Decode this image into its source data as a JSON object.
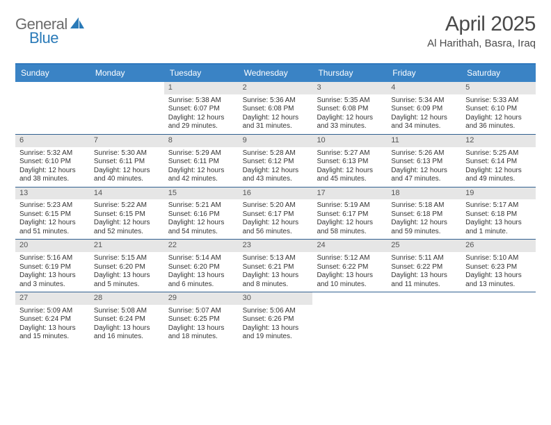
{
  "brand": {
    "text1": "General",
    "text2": "Blue"
  },
  "title": {
    "month": "April 2025",
    "location": "Al Harithah, Basra, Iraq"
  },
  "colors": {
    "header_bg": "#3a83c5",
    "header_border": "#2f78bd",
    "row_border": "#2f5f8f",
    "daynum_bg": "#e6e6e6",
    "text_dark": "#333333",
    "brand_gray": "#6b6b6b",
    "brand_blue": "#2a7ab8"
  },
  "weekdays": [
    "Sunday",
    "Monday",
    "Tuesday",
    "Wednesday",
    "Thursday",
    "Friday",
    "Saturday"
  ],
  "layout": {
    "first_weekday_index": 2,
    "days_in_month": 30
  },
  "days": {
    "1": {
      "sunrise": "Sunrise: 5:38 AM",
      "sunset": "Sunset: 6:07 PM",
      "daylight": "Daylight: 12 hours and 29 minutes."
    },
    "2": {
      "sunrise": "Sunrise: 5:36 AM",
      "sunset": "Sunset: 6:08 PM",
      "daylight": "Daylight: 12 hours and 31 minutes."
    },
    "3": {
      "sunrise": "Sunrise: 5:35 AM",
      "sunset": "Sunset: 6:08 PM",
      "daylight": "Daylight: 12 hours and 33 minutes."
    },
    "4": {
      "sunrise": "Sunrise: 5:34 AM",
      "sunset": "Sunset: 6:09 PM",
      "daylight": "Daylight: 12 hours and 34 minutes."
    },
    "5": {
      "sunrise": "Sunrise: 5:33 AM",
      "sunset": "Sunset: 6:10 PM",
      "daylight": "Daylight: 12 hours and 36 minutes."
    },
    "6": {
      "sunrise": "Sunrise: 5:32 AM",
      "sunset": "Sunset: 6:10 PM",
      "daylight": "Daylight: 12 hours and 38 minutes."
    },
    "7": {
      "sunrise": "Sunrise: 5:30 AM",
      "sunset": "Sunset: 6:11 PM",
      "daylight": "Daylight: 12 hours and 40 minutes."
    },
    "8": {
      "sunrise": "Sunrise: 5:29 AM",
      "sunset": "Sunset: 6:11 PM",
      "daylight": "Daylight: 12 hours and 42 minutes."
    },
    "9": {
      "sunrise": "Sunrise: 5:28 AM",
      "sunset": "Sunset: 6:12 PM",
      "daylight": "Daylight: 12 hours and 43 minutes."
    },
    "10": {
      "sunrise": "Sunrise: 5:27 AM",
      "sunset": "Sunset: 6:13 PM",
      "daylight": "Daylight: 12 hours and 45 minutes."
    },
    "11": {
      "sunrise": "Sunrise: 5:26 AM",
      "sunset": "Sunset: 6:13 PM",
      "daylight": "Daylight: 12 hours and 47 minutes."
    },
    "12": {
      "sunrise": "Sunrise: 5:25 AM",
      "sunset": "Sunset: 6:14 PM",
      "daylight": "Daylight: 12 hours and 49 minutes."
    },
    "13": {
      "sunrise": "Sunrise: 5:23 AM",
      "sunset": "Sunset: 6:15 PM",
      "daylight": "Daylight: 12 hours and 51 minutes."
    },
    "14": {
      "sunrise": "Sunrise: 5:22 AM",
      "sunset": "Sunset: 6:15 PM",
      "daylight": "Daylight: 12 hours and 52 minutes."
    },
    "15": {
      "sunrise": "Sunrise: 5:21 AM",
      "sunset": "Sunset: 6:16 PM",
      "daylight": "Daylight: 12 hours and 54 minutes."
    },
    "16": {
      "sunrise": "Sunrise: 5:20 AM",
      "sunset": "Sunset: 6:17 PM",
      "daylight": "Daylight: 12 hours and 56 minutes."
    },
    "17": {
      "sunrise": "Sunrise: 5:19 AM",
      "sunset": "Sunset: 6:17 PM",
      "daylight": "Daylight: 12 hours and 58 minutes."
    },
    "18": {
      "sunrise": "Sunrise: 5:18 AM",
      "sunset": "Sunset: 6:18 PM",
      "daylight": "Daylight: 12 hours and 59 minutes."
    },
    "19": {
      "sunrise": "Sunrise: 5:17 AM",
      "sunset": "Sunset: 6:18 PM",
      "daylight": "Daylight: 13 hours and 1 minute."
    },
    "20": {
      "sunrise": "Sunrise: 5:16 AM",
      "sunset": "Sunset: 6:19 PM",
      "daylight": "Daylight: 13 hours and 3 minutes."
    },
    "21": {
      "sunrise": "Sunrise: 5:15 AM",
      "sunset": "Sunset: 6:20 PM",
      "daylight": "Daylight: 13 hours and 5 minutes."
    },
    "22": {
      "sunrise": "Sunrise: 5:14 AM",
      "sunset": "Sunset: 6:20 PM",
      "daylight": "Daylight: 13 hours and 6 minutes."
    },
    "23": {
      "sunrise": "Sunrise: 5:13 AM",
      "sunset": "Sunset: 6:21 PM",
      "daylight": "Daylight: 13 hours and 8 minutes."
    },
    "24": {
      "sunrise": "Sunrise: 5:12 AM",
      "sunset": "Sunset: 6:22 PM",
      "daylight": "Daylight: 13 hours and 10 minutes."
    },
    "25": {
      "sunrise": "Sunrise: 5:11 AM",
      "sunset": "Sunset: 6:22 PM",
      "daylight": "Daylight: 13 hours and 11 minutes."
    },
    "26": {
      "sunrise": "Sunrise: 5:10 AM",
      "sunset": "Sunset: 6:23 PM",
      "daylight": "Daylight: 13 hours and 13 minutes."
    },
    "27": {
      "sunrise": "Sunrise: 5:09 AM",
      "sunset": "Sunset: 6:24 PM",
      "daylight": "Daylight: 13 hours and 15 minutes."
    },
    "28": {
      "sunrise": "Sunrise: 5:08 AM",
      "sunset": "Sunset: 6:24 PM",
      "daylight": "Daylight: 13 hours and 16 minutes."
    },
    "29": {
      "sunrise": "Sunrise: 5:07 AM",
      "sunset": "Sunset: 6:25 PM",
      "daylight": "Daylight: 13 hours and 18 minutes."
    },
    "30": {
      "sunrise": "Sunrise: 5:06 AM",
      "sunset": "Sunset: 6:26 PM",
      "daylight": "Daylight: 13 hours and 19 minutes."
    }
  }
}
